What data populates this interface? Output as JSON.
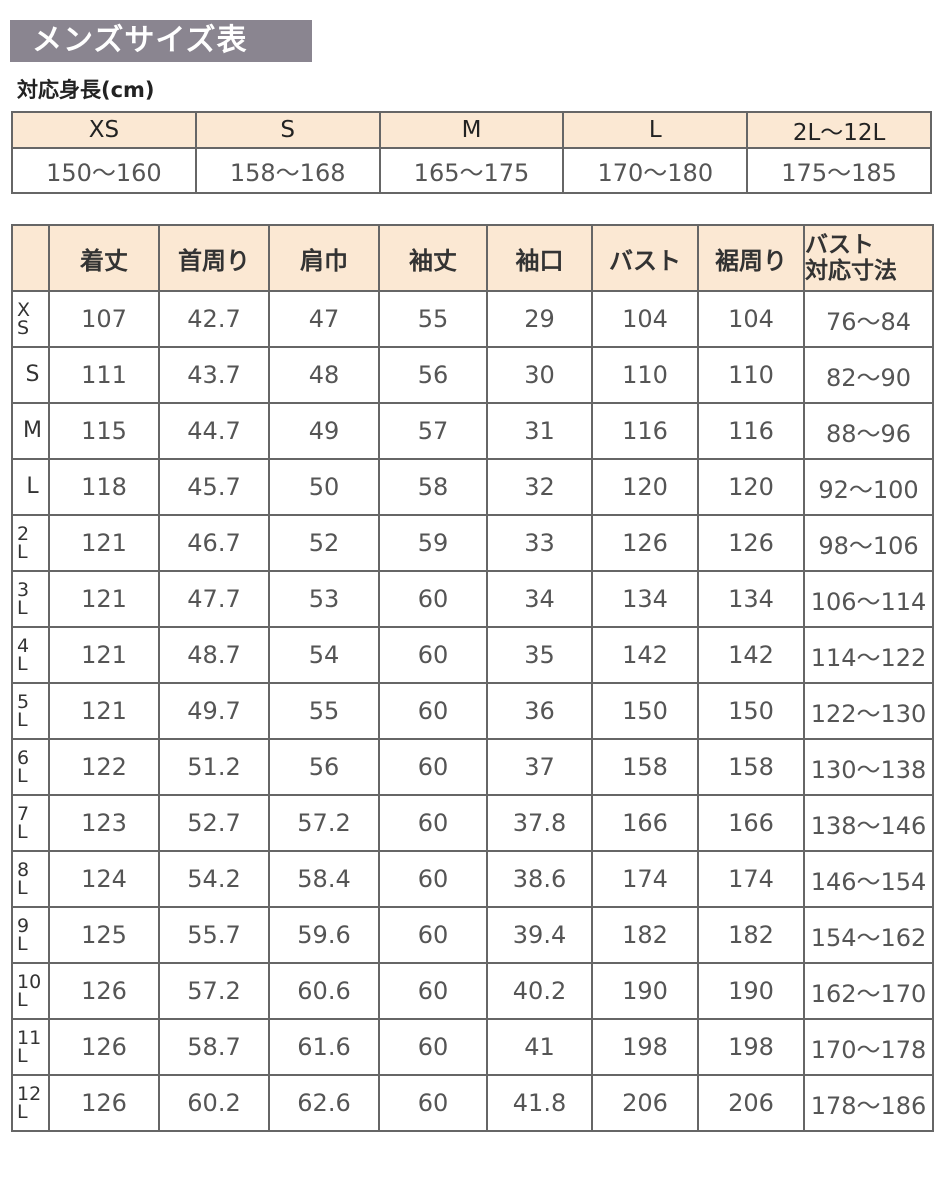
{
  "title": "メンズサイズ表",
  "height_label": "対応身長(cm)",
  "height_table": {
    "sizes": [
      "XS",
      "S",
      "M",
      "L",
      "2L〜12L"
    ],
    "ranges": [
      "150〜160",
      "158〜168",
      "165〜175",
      "170〜180",
      "175〜185"
    ]
  },
  "colors": {
    "title_bg": "#8a8590",
    "header_bg": "#fbe8d3",
    "border": "#666666"
  },
  "measure_table": {
    "headers": [
      "",
      "着丈",
      "首周り",
      "肩巾",
      "袖丈",
      "袖口",
      "バスト",
      "裾周り",
      "バスト対応寸法"
    ],
    "rows": [
      [
        "XS",
        "107",
        "42.7",
        "47",
        "55",
        "29",
        "104",
        "104",
        "76〜84"
      ],
      [
        "S",
        "111",
        "43.7",
        "48",
        "56",
        "30",
        "110",
        "110",
        "82〜90"
      ],
      [
        "M",
        "115",
        "44.7",
        "49",
        "57",
        "31",
        "116",
        "116",
        "88〜96"
      ],
      [
        "L",
        "118",
        "45.7",
        "50",
        "58",
        "32",
        "120",
        "120",
        "92〜100"
      ],
      [
        "2L",
        "121",
        "46.7",
        "52",
        "59",
        "33",
        "126",
        "126",
        "98〜106"
      ],
      [
        "3L",
        "121",
        "47.7",
        "53",
        "60",
        "34",
        "134",
        "134",
        "106〜114"
      ],
      [
        "4L",
        "121",
        "48.7",
        "54",
        "60",
        "35",
        "142",
        "142",
        "114〜122"
      ],
      [
        "5L",
        "121",
        "49.7",
        "55",
        "60",
        "36",
        "150",
        "150",
        "122〜130"
      ],
      [
        "6L",
        "122",
        "51.2",
        "56",
        "60",
        "37",
        "158",
        "158",
        "130〜138"
      ],
      [
        "7L",
        "123",
        "52.7",
        "57.2",
        "60",
        "37.8",
        "166",
        "166",
        "138〜146"
      ],
      [
        "8L",
        "124",
        "54.2",
        "58.4",
        "60",
        "38.6",
        "174",
        "174",
        "146〜154"
      ],
      [
        "9L",
        "125",
        "55.7",
        "59.6",
        "60",
        "39.4",
        "182",
        "182",
        "154〜162"
      ],
      [
        "10L",
        "126",
        "57.2",
        "60.6",
        "60",
        "40.2",
        "190",
        "190",
        "162〜170"
      ],
      [
        "11L",
        "126",
        "58.7",
        "61.6",
        "60",
        "41",
        "198",
        "198",
        "170〜178"
      ],
      [
        "12L",
        "126",
        "60.2",
        "62.6",
        "60",
        "41.8",
        "206",
        "206",
        "178〜186"
      ]
    ]
  }
}
